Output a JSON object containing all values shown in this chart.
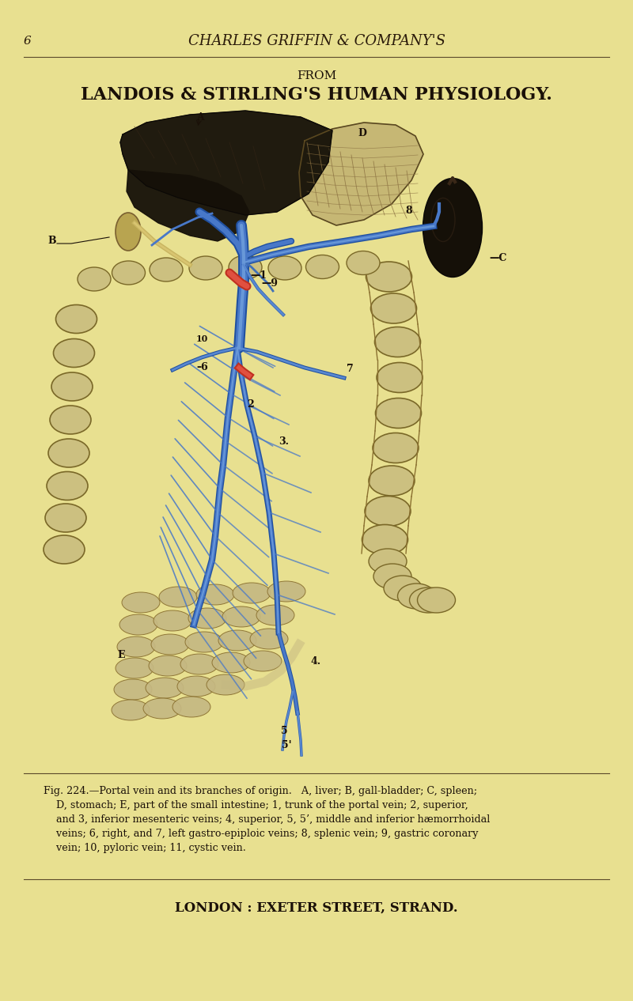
{
  "background_color": "#e8e090",
  "page_number": "6",
  "header_text": "CHARLES GRIFFIN & COMPANY'S",
  "from_text": "FROM",
  "title_text": "LANDOIS & STIRLING'S HUMAN PHYSIOLOGY.",
  "footer_text": "LONDON : EXETER STREET, STRAND.",
  "fig_width": 8.0,
  "fig_height": 12.66,
  "dpi": 100,
  "text_color": "#1a1008",
  "header_color": "#2a1a0a",
  "line_color": "#5a4a2a",
  "caption_lines": [
    "Fig. 224.—Portal vein and its branches of origin.   A, liver; B, gall-bladder; C, spleen;",
    "    D, stomach; E, part of the small intestine; 1, trunk of the portal vein; 2, superior,",
    "    and 3, inferior mesenteric veins; 4, superior, 5, 5’, middle and inferior hæmorrhoidal",
    "    veins; 6, right, and 7, left gastro-epiploic veins; 8, splenic vein; 9, gastric coronary",
    "    vein; 10, pyloric vein; 11, cystic vein."
  ]
}
